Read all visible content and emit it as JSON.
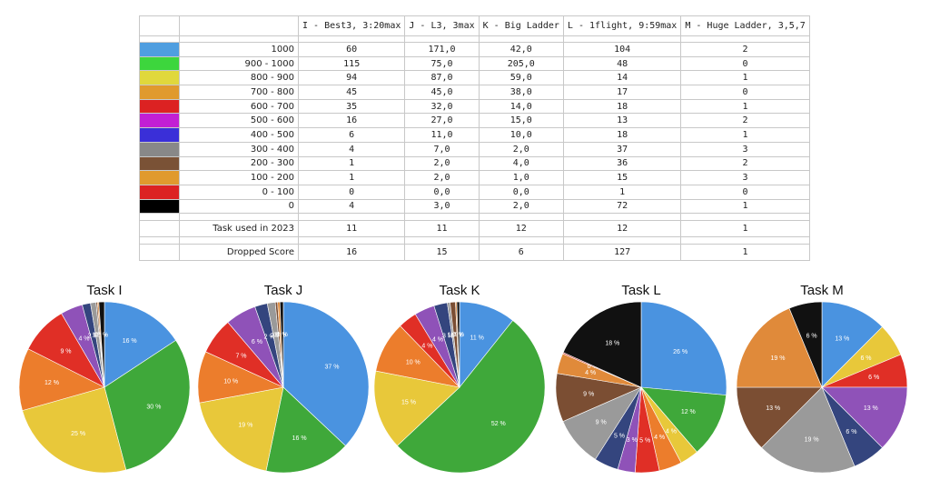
{
  "table": {
    "headers": [
      "I - Best3, 3:20max",
      "J - L3, 3max",
      "K - Big Ladder",
      "L - 1flight, 9:59max",
      "M - Huge Ladder, 3,5,7"
    ],
    "rows": [
      {
        "label": "1000",
        "color": "#4f9ee0",
        "values": [
          "60",
          "171,0",
          "42,0",
          "104",
          "2"
        ]
      },
      {
        "label": "900 - 1000",
        "color": "#3dd63d",
        "values": [
          "115",
          "75,0",
          "205,0",
          "48",
          "0"
        ]
      },
      {
        "label": "800 - 900",
        "color": "#e0d83c",
        "values": [
          "94",
          "87,0",
          "59,0",
          "14",
          "1"
        ]
      },
      {
        "label": "700 - 800",
        "color": "#e09a2e",
        "values": [
          "45",
          "45,0",
          "38,0",
          "17",
          "0"
        ]
      },
      {
        "label": "600 - 700",
        "color": "#dc2222",
        "values": [
          "35",
          "32,0",
          "14,0",
          "18",
          "1"
        ]
      },
      {
        "label": "500 - 600",
        "color": "#c21fd4",
        "values": [
          "16",
          "27,0",
          "15,0",
          "13",
          "2"
        ]
      },
      {
        "label": "400 - 500",
        "color": "#3a2fd8",
        "values": [
          "6",
          "11,0",
          "10,0",
          "18",
          "1"
        ]
      },
      {
        "label": "300 - 400",
        "color": "#888888",
        "values": [
          "4",
          "7,0",
          "2,0",
          "37",
          "3"
        ]
      },
      {
        "label": "200 - 300",
        "color": "#7a5236",
        "values": [
          "1",
          "2,0",
          "4,0",
          "36",
          "2"
        ]
      },
      {
        "label": "100 - 200",
        "color": "#e09a2e",
        "values": [
          "1",
          "2,0",
          "1,0",
          "15",
          "3"
        ]
      },
      {
        "label": "0 - 100",
        "color": "#dc2222",
        "values": [
          "0",
          "0,0",
          "0,0",
          "1",
          "0"
        ]
      },
      {
        "label": "0",
        "color": "#000000",
        "values": [
          "4",
          "3,0",
          "2,0",
          "72",
          "1"
        ]
      }
    ],
    "task_used": {
      "label": "Task used in 2023",
      "values": [
        "11",
        "11",
        "12",
        "12",
        "1"
      ]
    },
    "dropped": {
      "label": "Dropped Score",
      "values": [
        "16",
        "15",
        "6",
        "127",
        "1"
      ]
    }
  },
  "chart_data": [
    {
      "type": "pie",
      "title": "Task I",
      "categories": [
        "1000",
        "900 - 1000",
        "800 - 900",
        "700 - 800",
        "600 - 700",
        "500 - 600",
        "400 - 500",
        "300 - 400",
        "200 - 300",
        "100 - 200",
        "0 - 100",
        "0"
      ],
      "values": [
        60,
        115,
        94,
        45,
        35,
        16,
        6,
        4,
        1,
        1,
        0,
        4
      ],
      "colors": [
        "#4a93e0",
        "#3fa83a",
        "#e8c83a",
        "#ec7d2c",
        "#e02f26",
        "#8f52b8",
        "#34457e",
        "#9a9a9a",
        "#7b4e33",
        "#e08a3a",
        "#c82b25",
        "#111111"
      ],
      "slice_labels": [
        "16 %",
        "30 %",
        "25 %",
        "12 %",
        "9 %",
        "4 %",
        "2 %",
        "1 %",
        "0 %",
        "0 %",
        "0 %",
        "1 %"
      ]
    },
    {
      "type": "pie",
      "title": "Task J",
      "categories": [
        "1000",
        "900 - 1000",
        "800 - 900",
        "700 - 800",
        "600 - 700",
        "500 - 600",
        "400 - 500",
        "300 - 400",
        "200 - 300",
        "100 - 200",
        "0 - 100",
        "0"
      ],
      "values": [
        171,
        75,
        87,
        45,
        32,
        27,
        11,
        7,
        2,
        2,
        0,
        3
      ],
      "colors": [
        "#4a93e0",
        "#3fa83a",
        "#e8c83a",
        "#ec7d2c",
        "#e02f26",
        "#8f52b8",
        "#34457e",
        "#9a9a9a",
        "#7b4e33",
        "#e08a3a",
        "#c82b25",
        "#111111"
      ],
      "slice_labels": [
        "37 %",
        "16 %",
        "19 %",
        "10 %",
        "7 %",
        "6 %",
        "2 %",
        "2 %",
        "0 %",
        "0 %",
        "0 %",
        "1 %"
      ]
    },
    {
      "type": "pie",
      "title": "Task K",
      "categories": [
        "1000",
        "900 - 1000",
        "800 - 900",
        "700 - 800",
        "600 - 700",
        "500 - 600",
        "400 - 500",
        "300 - 400",
        "200 - 300",
        "100 - 200",
        "0 - 100",
        "0"
      ],
      "values": [
        42,
        205,
        59,
        38,
        14,
        15,
        10,
        2,
        4,
        1,
        0,
        2
      ],
      "colors": [
        "#4a93e0",
        "#3fa83a",
        "#e8c83a",
        "#ec7d2c",
        "#e02f26",
        "#8f52b8",
        "#34457e",
        "#9a9a9a",
        "#7b4e33",
        "#e08a3a",
        "#c82b25",
        "#111111"
      ],
      "slice_labels": [
        "11 %",
        "52 %",
        "15 %",
        "10 %",
        "4 %",
        "4 %",
        "3 %",
        "1 %",
        "1 %",
        "0 %",
        "0 %",
        "1 %"
      ]
    },
    {
      "type": "pie",
      "title": "Task L",
      "categories": [
        "1000",
        "900 - 1000",
        "800 - 900",
        "700 - 800",
        "600 - 700",
        "500 - 600",
        "400 - 500",
        "300 - 400",
        "200 - 300",
        "100 - 200",
        "0 - 100",
        "0"
      ],
      "values": [
        104,
        48,
        14,
        17,
        18,
        13,
        18,
        37,
        36,
        15,
        1,
        72
      ],
      "colors": [
        "#4a93e0",
        "#3fa83a",
        "#e8c83a",
        "#ec7d2c",
        "#e02f26",
        "#8f52b8",
        "#34457e",
        "#9a9a9a",
        "#7b4e33",
        "#e08a3a",
        "#c82b25",
        "#111111"
      ],
      "slice_labels": [
        "26 %",
        "12 %",
        "4 %",
        "4 %",
        "5 %",
        "3 %",
        "5 %",
        "9 %",
        "9 %",
        "4 %",
        "0 %",
        "18 %"
      ]
    },
    {
      "type": "pie",
      "title": "Task M",
      "categories": [
        "1000",
        "900 - 1000",
        "800 - 900",
        "700 - 800",
        "600 - 700",
        "500 - 600",
        "400 - 500",
        "300 - 400",
        "200 - 300",
        "100 - 200",
        "0 - 100",
        "0"
      ],
      "values": [
        2,
        0,
        1,
        0,
        1,
        2,
        1,
        3,
        2,
        3,
        0,
        1
      ],
      "colors": [
        "#4a93e0",
        "#3fa83a",
        "#e8c83a",
        "#ec7d2c",
        "#e02f26",
        "#8f52b8",
        "#34457e",
        "#9a9a9a",
        "#7b4e33",
        "#e08a3a",
        "#c82b25",
        "#111111"
      ],
      "slice_labels": [
        "13 %",
        "0 %",
        "6 %",
        "0 %",
        "6 %",
        "13 %",
        "6 %",
        "19 %",
        "13 %",
        "19 %",
        "0 %",
        "6 %"
      ]
    }
  ]
}
